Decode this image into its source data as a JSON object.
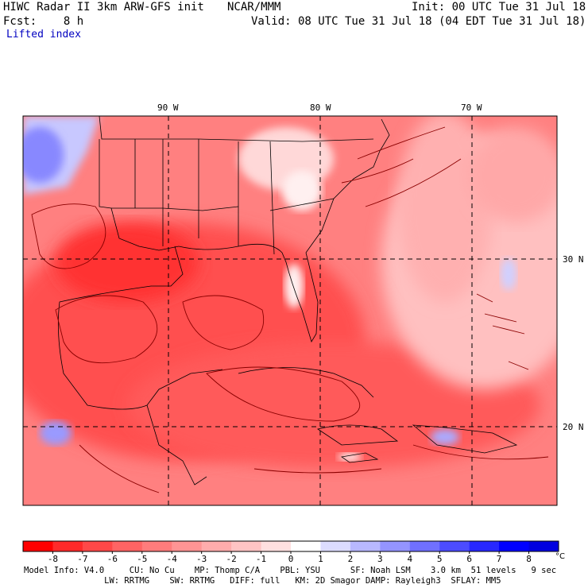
{
  "header": {
    "model": "HIWC Radar II 3km ARW-GFS init",
    "org": "NCAR/MMM",
    "init": "Init: 00 UTC Tue 31 Jul 18",
    "forecast": "Fcst:    8 h",
    "valid": "Valid: 08 UTC Tue 31 Jul 18 (04 EDT Tue 31 Jul 18)",
    "field": "Lifted index"
  },
  "map": {
    "lon_labels": [
      "90 W",
      "80 W",
      "70 W"
    ],
    "lat_labels": [
      "30 N",
      "20 N"
    ],
    "colors": {
      "frame": "#000000",
      "grid": "#000000",
      "boundaries": "#000000",
      "contours": "#8b0000"
    }
  },
  "colorbar": {
    "labels": [
      "-8",
      "-7",
      "-6",
      "-5",
      "-4",
      "-3",
      "-2",
      "-1",
      "0",
      "1",
      "2",
      "3",
      "4",
      "5",
      "6",
      "7",
      "8"
    ],
    "unit": "°C",
    "colors": [
      "#ff0000",
      "#ff2a2a",
      "#ff4848",
      "#ff6464",
      "#ff7c7c",
      "#ff9494",
      "#ffacac",
      "#ffc4c4",
      "#ffe0e0",
      "#ffffff",
      "#dcdcff",
      "#b8b8ff",
      "#9494ff",
      "#7070ff",
      "#4c4cff",
      "#2828ff",
      "#0000ff",
      "#0000e0"
    ]
  },
  "footer": {
    "line1": "Model Info: V4.0     CU: No Cu    MP: Thomp C/A    PBL: YSU      SF: Noah LSM    3.0 km  51 levels   9 sec",
    "line2": "                LW: RRTMG    SW: RRTMG   DIFF: full   KM: 2D Smagor DAMP: Rayleigh3  SFLAY: MM5"
  }
}
